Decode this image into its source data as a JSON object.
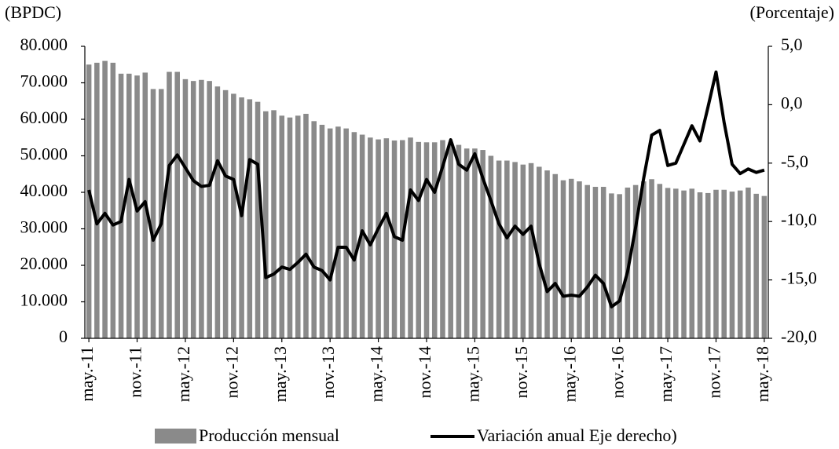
{
  "chart_data": {
    "type": "bar-line",
    "y_label": "(BPDC)",
    "y2_label": "(Porcentaje)",
    "categories": [
      "may.-11",
      null,
      null,
      null,
      null,
      null,
      "nov.-11",
      null,
      null,
      null,
      null,
      null,
      "may.-12",
      null,
      null,
      null,
      null,
      null,
      "nov.-12",
      null,
      null,
      null,
      null,
      null,
      "may.-13",
      null,
      null,
      null,
      null,
      null,
      "nov.-13",
      null,
      null,
      null,
      null,
      null,
      "may.-14",
      null,
      null,
      null,
      null,
      null,
      "nov.-14",
      null,
      null,
      null,
      null,
      null,
      "may.-15",
      null,
      null,
      null,
      null,
      null,
      "nov.-15",
      null,
      null,
      null,
      null,
      null,
      "may.-16",
      null,
      null,
      null,
      null,
      null,
      "nov.-16",
      null,
      null,
      null,
      null,
      null,
      "may.-17",
      null,
      null,
      null,
      null,
      null,
      "nov.-17",
      null,
      null,
      null,
      null,
      null,
      "may.-18"
    ],
    "series": [
      {
        "name": "Producción mensual",
        "type": "bar",
        "color": "#8a8a8a",
        "values": [
          75000,
          75500,
          76000,
          75500,
          72500,
          72500,
          72000,
          72800,
          68300,
          68300,
          73000,
          73000,
          71000,
          70500,
          70800,
          70500,
          69000,
          68000,
          67000,
          66000,
          65500,
          64800,
          62200,
          62500,
          61000,
          60500,
          61000,
          61500,
          59500,
          58500,
          57500,
          58000,
          57500,
          56500,
          55800,
          55000,
          54500,
          54800,
          54200,
          54300,
          55000,
          53800,
          53700,
          53700,
          54300,
          53700,
          53000,
          52000,
          52000,
          51600,
          50000,
          48700,
          48700,
          48300,
          47600,
          48000,
          47000,
          46000,
          45000,
          43300,
          43700,
          43000,
          42000,
          41500,
          41500,
          39700,
          39500,
          41300,
          42000,
          43000,
          43600,
          42300,
          41200,
          41000,
          40500,
          41000,
          40000,
          39800,
          40700,
          40700,
          40200,
          40500,
          41300,
          39600,
          39000
        ]
      },
      {
        "name": "Variación anual Eje derecho)",
        "type": "line",
        "axis": "y2",
        "color": "#000000",
        "values": [
          -7.3,
          -10.2,
          -9.3,
          -10.3,
          -10.0,
          -6.4,
          -9.1,
          -8.3,
          -11.6,
          -10.2,
          -5.2,
          -4.3,
          -5.4,
          -6.5,
          -7.0,
          -6.9,
          -4.8,
          -6.1,
          -6.4,
          -9.5,
          -4.7,
          -5.1,
          -14.8,
          -14.5,
          -13.9,
          -14.1,
          -13.5,
          -12.8,
          -13.9,
          -14.2,
          -15.0,
          -12.2,
          -12.2,
          -13.3,
          -10.8,
          -12.0,
          -10.6,
          -9.3,
          -11.3,
          -11.6,
          -7.3,
          -8.2,
          -6.4,
          -7.5,
          -5.3,
          -3.0,
          -5.1,
          -5.6,
          -4.2,
          -6.3,
          -8.2,
          -10.2,
          -11.4,
          -10.4,
          -11.1,
          -10.4,
          -13.6,
          -16.0,
          -15.3,
          -16.4,
          -16.3,
          -16.4,
          -15.6,
          -14.6,
          -15.3,
          -17.3,
          -16.8,
          -14.3,
          -10.5,
          -6.3,
          -2.6,
          -2.2,
          -5.2,
          -5.0,
          -3.4,
          -1.8,
          -3.1,
          -0.2,
          2.8,
          -1.5,
          -5.1,
          -5.9,
          -5.5,
          -5.8,
          -5.6
        ]
      }
    ],
    "ylim": [
      0,
      80000
    ],
    "yticks": [
      0,
      {
        "value": 10000,
        "label": "10.000"
      },
      {
        "value": 20000,
        "label": "20.000"
      },
      {
        "value": 30000,
        "label": "30.000"
      },
      {
        "value": 40000,
        "label": "40.000"
      },
      {
        "value": 50000,
        "label": "50.000"
      },
      {
        "value": 60000,
        "label": "60.000"
      },
      {
        "value": 70000,
        "label": "70.000"
      },
      {
        "value": 80000,
        "label": "80.000"
      }
    ],
    "y2lim": [
      -20,
      5
    ],
    "y2ticks": [
      {
        "value": -20,
        "label": "-20,0"
      },
      {
        "value": -15,
        "label": "-15,0"
      },
      {
        "value": -10,
        "label": "-10,0"
      },
      {
        "value": -5,
        "label": "-5,0"
      },
      {
        "value": 0,
        "label": "0,0"
      },
      {
        "value": 5,
        "label": "5,0"
      }
    ],
    "legend": "bottom",
    "grid": false
  }
}
